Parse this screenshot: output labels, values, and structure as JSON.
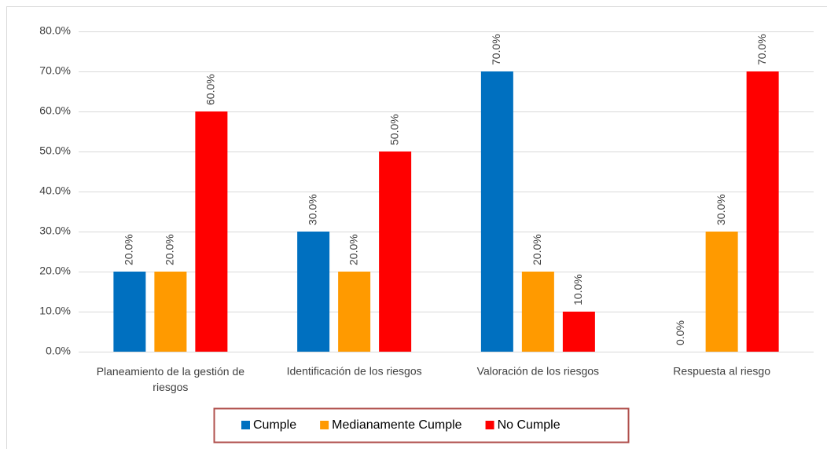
{
  "chart_data": {
    "type": "bar",
    "categories": [
      "Planeamiento de la gestión de riesgos",
      "Identificación de los riesgos",
      "Valoración de los riesgos",
      "Respuesta al riesgo"
    ],
    "series": [
      {
        "name": "Cumple",
        "color": "#0070c0",
        "values": [
          20,
          30,
          70,
          0
        ],
        "value_labels": [
          "20.0%",
          "30.0%",
          "70.0%",
          "0.0%"
        ]
      },
      {
        "name": "Medianamente Cumple",
        "color": "#ff9a00",
        "values": [
          20,
          20,
          20,
          30
        ],
        "value_labels": [
          "20.0%",
          "20.0%",
          "20.0%",
          "30.0%"
        ]
      },
      {
        "name": "No Cumple",
        "color": "#ff0000",
        "values": [
          60,
          50,
          10,
          70
        ],
        "value_labels": [
          "60.0%",
          "50.0%",
          "10.0%",
          "70.0%"
        ]
      }
    ],
    "ylim": [
      0,
      80
    ],
    "yticks": [
      {
        "value": 0,
        "label": "0.0%"
      },
      {
        "value": 10,
        "label": "10.0%"
      },
      {
        "value": 20,
        "label": "20.0%"
      },
      {
        "value": 30,
        "label": "30.0%"
      },
      {
        "value": 40,
        "label": "40.0%"
      },
      {
        "value": 50,
        "label": "50.0%"
      },
      {
        "value": 60,
        "label": "60.0%"
      },
      {
        "value": 70,
        "label": "70.0%"
      },
      {
        "value": 80,
        "label": "80.0%"
      }
    ],
    "grid": true,
    "legend": "bottom"
  }
}
